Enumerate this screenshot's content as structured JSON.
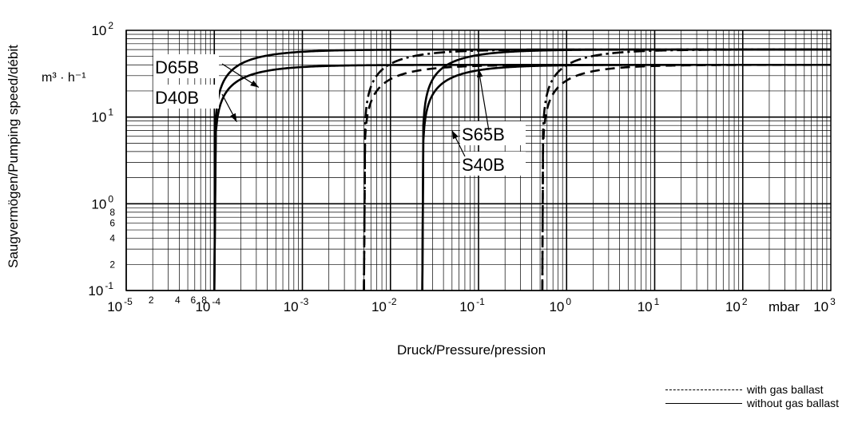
{
  "chart_data": {
    "type": "line",
    "x_scale": "log",
    "y_scale": "log",
    "xlim": [
      1e-05,
      1000
    ],
    "ylim": [
      0.1,
      100
    ],
    "grid": true,
    "ylabel": "Saugvermögen/Pumping speed/débit",
    "y_unit": "m³ · h⁻¹",
    "xlabel": "Druck/Pressure/pression",
    "x_unit": "mbar",
    "x_ticks": [
      {
        "v": 1e-05,
        "base": "10",
        "exp": "-5"
      },
      {
        "v": 0.0001,
        "base": "10",
        "exp": "-4"
      },
      {
        "v": 0.001,
        "base": "10",
        "exp": "-3"
      },
      {
        "v": 0.01,
        "base": "10",
        "exp": "-2"
      },
      {
        "v": 0.1,
        "base": "10",
        "exp": "-1"
      },
      {
        "v": 1,
        "base": "10",
        "exp": "0"
      },
      {
        "v": 10,
        "base": "10",
        "exp": "1"
      },
      {
        "v": 100,
        "base": "10",
        "exp": "2"
      },
      {
        "v": 1000,
        "base": "10",
        "exp": "3"
      }
    ],
    "x_minor_labels": [
      {
        "v": 2e-05,
        "text": "2"
      },
      {
        "v": 4e-05,
        "text": "4"
      },
      {
        "v": 6e-05,
        "text": "6"
      },
      {
        "v": 8e-05,
        "text": "8"
      }
    ],
    "y_ticks": [
      {
        "v": 0.1,
        "base": "10",
        "exp": "-1"
      },
      {
        "v": 1,
        "base": "10",
        "exp": "0"
      },
      {
        "v": 10,
        "base": "10",
        "exp": "1"
      },
      {
        "v": 100,
        "base": "10",
        "exp": "2"
      }
    ],
    "y_minor_labels": [
      {
        "v": 0.2,
        "text": "2"
      },
      {
        "v": 0.4,
        "text": "4"
      },
      {
        "v": 0.6,
        "text": "6"
      },
      {
        "v": 0.8,
        "text": "8"
      }
    ],
    "series": [
      {
        "name": "D65B",
        "style": "solid",
        "p_start": 0.0001,
        "s_max": 60
      },
      {
        "name": "D40B",
        "style": "solid",
        "p_start": 0.0001,
        "s_max": 40
      },
      {
        "name": "D65B",
        "style": "dashdot",
        "p_start": 0.005,
        "s_max": 60
      },
      {
        "name": "D40B",
        "style": "dashed",
        "p_start": 0.005,
        "s_max": 40
      },
      {
        "name": "S65B",
        "style": "solid",
        "p_start": 0.023,
        "s_max": 60
      },
      {
        "name": "S40B",
        "style": "solid",
        "p_start": 0.023,
        "s_max": 40
      },
      {
        "name": "S65B",
        "style": "dashdot",
        "p_start": 0.53,
        "s_max": 60
      },
      {
        "name": "S40B",
        "style": "dashed",
        "p_start": 0.53,
        "s_max": 40
      }
    ],
    "annotations": [
      {
        "text": "D65B",
        "target_x": 0.00032,
        "target_y": 22
      },
      {
        "text": "D40B",
        "target_x": 0.00018,
        "target_y": 8.8
      },
      {
        "text": "S65B",
        "target_x": 0.1,
        "target_y": 36
      },
      {
        "text": "S40B",
        "target_x": 0.05,
        "target_y": 7
      }
    ],
    "legend": {
      "position": "bottom-right",
      "items": [
        {
          "style": "dashed",
          "label": "with gas ballast"
        },
        {
          "style": "solid",
          "label": "without gas ballast"
        }
      ]
    }
  }
}
